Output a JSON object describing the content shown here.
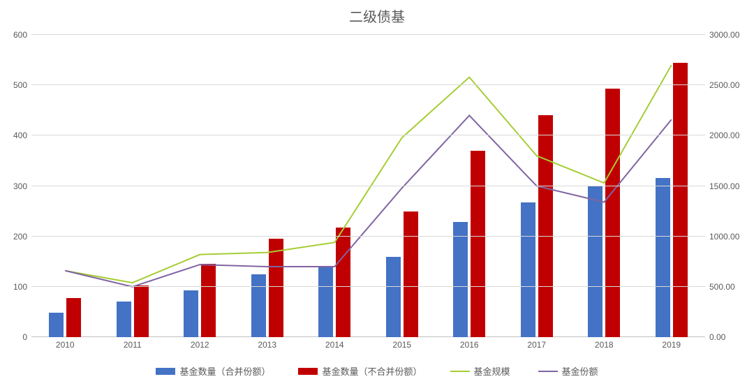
{
  "chart": {
    "type": "bar+line-dual-axis",
    "title": "二级债基",
    "title_fontsize": 20,
    "title_color": "#595959",
    "background_color": "#ffffff",
    "grid_color": "#d9d9d9",
    "axis_label_color": "#595959",
    "axis_label_fontsize": 12,
    "categories": [
      "2010",
      "2011",
      "2012",
      "2013",
      "2014",
      "2015",
      "2016",
      "2017",
      "2018",
      "2019"
    ],
    "left_axis": {
      "min": 0,
      "max": 600,
      "step": 100
    },
    "right_axis": {
      "min": 0,
      "max": 3000,
      "step": 500,
      "decimals": 2
    },
    "bar_width_pct": 22,
    "bar_gap_pct": 4,
    "series": {
      "bars1": {
        "name": "基金数量（合并份额）",
        "color": "#4472c4",
        "axis": "left",
        "values": [
          48,
          70,
          93,
          125,
          138,
          160,
          228,
          268,
          300,
          316
        ]
      },
      "bars2": {
        "name": "基金数量（不合并份额）",
        "color": "#c00000",
        "axis": "left",
        "values": [
          77,
          102,
          145,
          195,
          218,
          250,
          370,
          440,
          493,
          545
        ]
      },
      "line1": {
        "name": "基金规模",
        "color": "#a6c d34",
        "color_hex": "#a6cd34",
        "axis": "right",
        "line_width": 2,
        "values": [
          660,
          540,
          820,
          840,
          940,
          1980,
          2580,
          1800,
          1530,
          2700
        ]
      },
      "line2": {
        "name": "基金份额",
        "color_hex": "#8064a2",
        "axis": "right",
        "line_width": 2,
        "values": [
          660,
          500,
          720,
          700,
          700,
          1480,
          2200,
          1500,
          1340,
          2160
        ]
      }
    },
    "legend": {
      "items": [
        {
          "key": "bars1",
          "type": "bar"
        },
        {
          "key": "bars2",
          "type": "bar"
        },
        {
          "key": "line1",
          "type": "line"
        },
        {
          "key": "line2",
          "type": "line"
        }
      ]
    }
  }
}
